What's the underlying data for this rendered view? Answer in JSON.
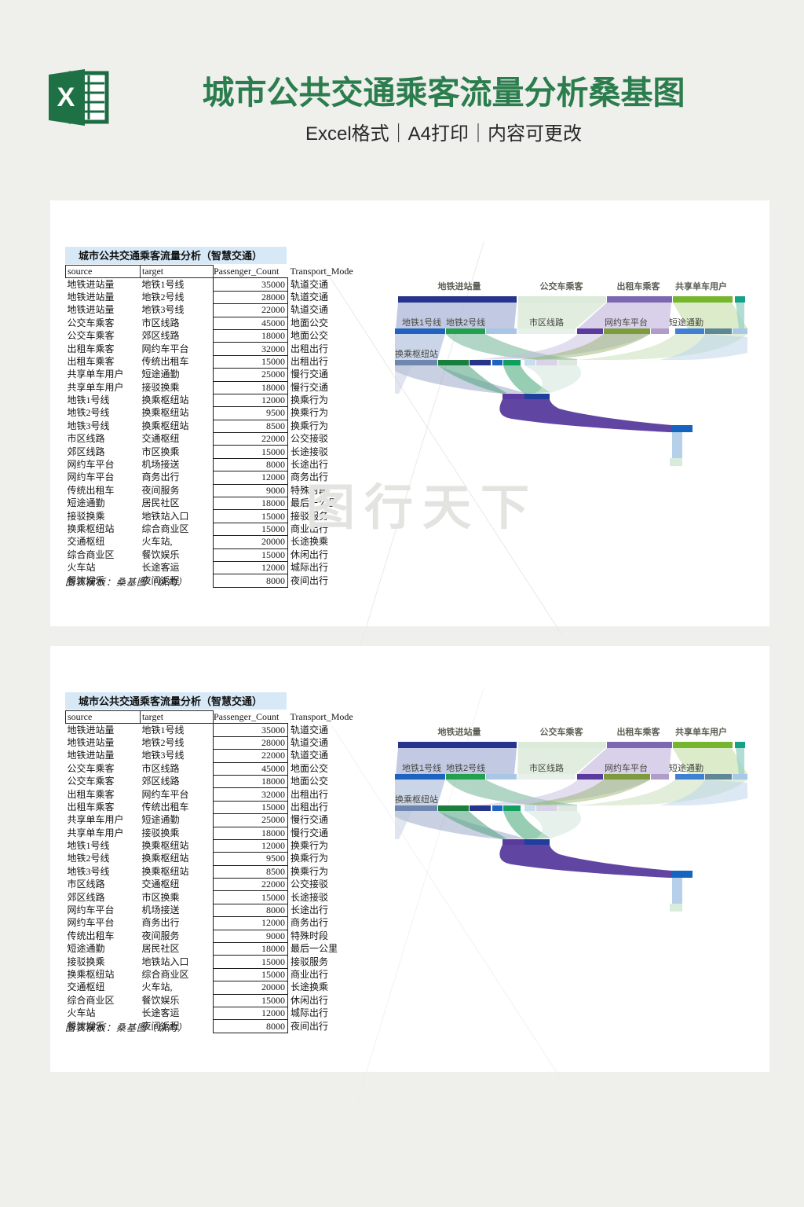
{
  "header": {
    "title": "城市公共交通乘客流量分析桑基图",
    "subtitle": "Excel格式｜A4打印｜内容可更改",
    "excel_letter": "X",
    "title_color": "#2b7d4d",
    "excel_green": "#1e7145"
  },
  "watermark": "图行天下",
  "sheet": {
    "table_title": "城市公共交通乘客流量分析（智慧交通）",
    "title_bg": "#d7e9f7",
    "columns": [
      "source",
      "target",
      "Passenger_Count",
      "Transport_Mode"
    ],
    "rows": [
      [
        "地铁进站量",
        "地铁1号线",
        "35000",
        "轨道交通"
      ],
      [
        "地铁进站量",
        "地铁2号线",
        "28000",
        "轨道交通"
      ],
      [
        "地铁进站量",
        "地铁3号线",
        "22000",
        "轨道交通"
      ],
      [
        "公交车乘客",
        "市区线路",
        "45000",
        "地面公交"
      ],
      [
        "公交车乘客",
        "郊区线路",
        "18000",
        "地面公交"
      ],
      [
        "出租车乘客",
        "网约车平台",
        "32000",
        "出租出行"
      ],
      [
        "出租车乘客",
        "传统出租车",
        "15000",
        "出租出行"
      ],
      [
        "共享单车用户",
        "短途通勤",
        "25000",
        "慢行交通"
      ],
      [
        "共享单车用户",
        "接驳换乘",
        "18000",
        "慢行交通"
      ],
      [
        "地铁1号线",
        "换乘枢纽站",
        "12000",
        "换乘行为"
      ],
      [
        "地铁2号线",
        "换乘枢纽站",
        "9500",
        "换乘行为"
      ],
      [
        "地铁3号线",
        "换乘枢纽站",
        "8500",
        "换乘行为"
      ],
      [
        "市区线路",
        "交通枢纽",
        "22000",
        "公交接驳"
      ],
      [
        "郊区线路",
        "市区换乘",
        "15000",
        "长途接驳"
      ],
      [
        "网约车平台",
        "机场接送",
        "8000",
        "长途出行"
      ],
      [
        "网约车平台",
        "商务出行",
        "12000",
        "商务出行"
      ],
      [
        "传统出租车",
        "夜间服务",
        "9000",
        "特殊时段"
      ],
      [
        "短途通勤",
        "居民社区",
        "18000",
        "最后一公里"
      ],
      [
        "接驳换乘",
        "地铁站入口",
        "15000",
        "接驳服务"
      ],
      [
        "换乘枢纽站",
        "综合商业区",
        "15000",
        "商业出行"
      ],
      [
        "交通枢纽",
        "火车站,",
        "20000",
        "长途换乘"
      ],
      [
        "综合商业区",
        "餐饮娱乐",
        "15000",
        "休闲出行"
      ],
      [
        "火车站",
        "长途客运",
        "12000",
        "城际出行"
      ],
      [
        "餐饮娱乐",
        "夜间返程",
        "8000",
        "夜间出行"
      ]
    ],
    "footer_note": "图表模板：桑基图（纵向）"
  },
  "sankey": {
    "level1": [
      "地铁进站量",
      "公交车乘客",
      "出租车乘客",
      "共享单车用户"
    ],
    "level2": [
      "地铁1号线",
      "地铁2号线",
      "市区线路",
      "网约车平台",
      "短途通勤"
    ],
    "level3": [
      "换乘枢纽站"
    ],
    "node_colors": {
      "地铁进站量": "#27348b",
      "公交车乘客": "#dcead9",
      "出租车乘客": "#7b68b0",
      "共享单车用户": "#76b52e",
      "地铁1号线": "#1f63c0",
      "地铁2号线": "#21a14e",
      "网约车平台": "#7d9a3c",
      "换乘枢纽站": "#6f87ae",
      "main_flow_purple": "#5b3d9e",
      "terminal_blue": "#1565c0"
    }
  },
  "chart_data": {
    "type": "sankey",
    "title": "城市公共交通乘客流量分析（智慧交通）",
    "orientation": "vertical",
    "levels": {
      "1": [
        "地铁进站量",
        "公交车乘客",
        "出租车乘客",
        "共享单车用户"
      ],
      "2": [
        "地铁1号线",
        "地铁2号线",
        "地铁3号线",
        "市区线路",
        "郊区线路",
        "网约车平台",
        "传统出租车",
        "短途通勤",
        "接驳换乘"
      ],
      "3": [
        "换乘枢纽站",
        "交通枢纽",
        "市区换乘",
        "机场接送",
        "商务出行",
        "夜间服务",
        "居民社区",
        "地铁站入口"
      ]
    },
    "links": [
      {
        "source": "地铁进站量",
        "target": "地铁1号线",
        "value": 35000,
        "mode": "轨道交通"
      },
      {
        "source": "地铁进站量",
        "target": "地铁2号线",
        "value": 28000,
        "mode": "轨道交通"
      },
      {
        "source": "地铁进站量",
        "target": "地铁3号线",
        "value": 22000,
        "mode": "轨道交通"
      },
      {
        "source": "公交车乘客",
        "target": "市区线路",
        "value": 45000,
        "mode": "地面公交"
      },
      {
        "source": "公交车乘客",
        "target": "郊区线路",
        "value": 18000,
        "mode": "地面公交"
      },
      {
        "source": "出租车乘客",
        "target": "网约车平台",
        "value": 32000,
        "mode": "出租出行"
      },
      {
        "source": "出租车乘客",
        "target": "传统出租车",
        "value": 15000,
        "mode": "出租出行"
      },
      {
        "source": "共享单车用户",
        "target": "短途通勤",
        "value": 25000,
        "mode": "慢行交通"
      },
      {
        "source": "共享单车用户",
        "target": "接驳换乘",
        "value": 18000,
        "mode": "慢行交通"
      },
      {
        "source": "地铁1号线",
        "target": "换乘枢纽站",
        "value": 12000,
        "mode": "换乘行为"
      },
      {
        "source": "地铁2号线",
        "target": "换乘枢纽站",
        "value": 9500,
        "mode": "换乘行为"
      },
      {
        "source": "地铁3号线",
        "target": "换乘枢纽站",
        "value": 8500,
        "mode": "换乘行为"
      },
      {
        "source": "市区线路",
        "target": "交通枢纽",
        "value": 22000,
        "mode": "公交接驳"
      },
      {
        "source": "郊区线路",
        "target": "市区换乘",
        "value": 15000,
        "mode": "长途接驳"
      },
      {
        "source": "网约车平台",
        "target": "机场接送",
        "value": 8000,
        "mode": "长途出行"
      },
      {
        "source": "网约车平台",
        "target": "商务出行",
        "value": 12000,
        "mode": "商务出行"
      },
      {
        "source": "传统出租车",
        "target": "夜间服务",
        "value": 9000,
        "mode": "特殊时段"
      },
      {
        "source": "短途通勤",
        "target": "居民社区",
        "value": 18000,
        "mode": "最后一公里"
      },
      {
        "source": "接驳换乘",
        "target": "地铁站入口",
        "value": 15000,
        "mode": "接驳服务"
      },
      {
        "source": "换乘枢纽站",
        "target": "综合商业区",
        "value": 15000,
        "mode": "商业出行"
      },
      {
        "source": "交通枢纽",
        "target": "火车站,",
        "value": 20000,
        "mode": "长途换乘"
      },
      {
        "source": "综合商业区",
        "target": "餐饮娱乐",
        "value": 15000,
        "mode": "休闲出行"
      },
      {
        "source": "火车站",
        "target": "长途客运",
        "value": 12000,
        "mode": "城际出行"
      },
      {
        "source": "餐饮娱乐",
        "target": "夜间返程",
        "value": 8000,
        "mode": "夜间出行"
      }
    ]
  }
}
